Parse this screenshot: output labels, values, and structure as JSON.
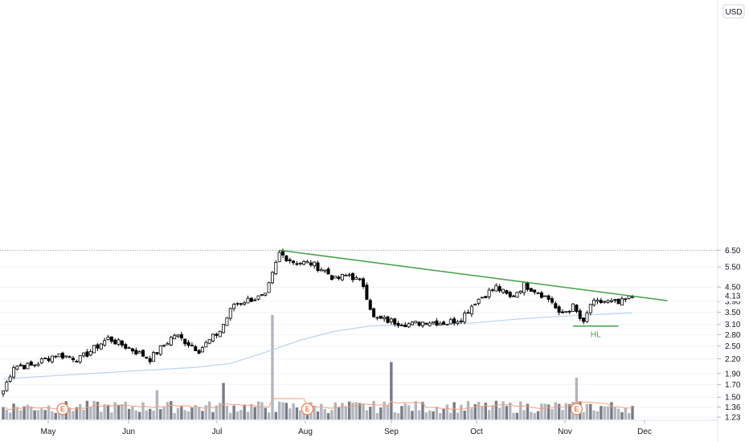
{
  "chart_data": {
    "type": "candlestick",
    "currency": "USD",
    "y_scale": "log",
    "ylim": [
      1.2,
      7.0
    ],
    "y_ticks": [
      "6.50",
      "5.50",
      "4.50",
      "3.90",
      "3.50",
      "3.10",
      "2.80",
      "2.50",
      "2.20",
      "1.90",
      "1.70",
      "1.50",
      "1.36",
      "1.23"
    ],
    "last_price_label": "4.13",
    "x_labels": [
      "May",
      "Jun",
      "Jul",
      "Aug",
      "Sep",
      "Oct",
      "Nov",
      "Dec"
    ],
    "price_keypoints": [
      [
        0,
        1.6
      ],
      [
        3,
        2.05
      ],
      [
        8,
        2.05
      ],
      [
        15,
        2.3
      ],
      [
        22,
        2.2
      ],
      [
        30,
        2.7
      ],
      [
        36,
        2.45
      ],
      [
        42,
        2.2
      ],
      [
        49,
        2.8
      ],
      [
        56,
        2.4
      ],
      [
        62,
        2.9
      ],
      [
        66,
        3.8
      ],
      [
        71,
        4.0
      ],
      [
        75,
        4.1
      ],
      [
        79,
        6.3
      ],
      [
        83,
        5.8
      ],
      [
        88,
        5.7
      ],
      [
        92,
        5.3
      ],
      [
        95,
        4.85
      ],
      [
        99,
        5.1
      ],
      [
        103,
        4.6
      ],
      [
        106,
        3.3
      ],
      [
        111,
        3.2
      ],
      [
        117,
        3.1
      ],
      [
        121,
        3.2
      ],
      [
        127,
        3.15
      ],
      [
        131,
        3.3
      ],
      [
        135,
        3.9
      ],
      [
        141,
        4.5
      ],
      [
        145,
        4.05
      ],
      [
        149,
        4.6
      ],
      [
        153,
        4.3
      ],
      [
        157,
        3.9
      ],
      [
        159,
        3.4
      ],
      [
        163,
        3.7
      ],
      [
        166,
        3.1
      ],
      [
        168,
        3.8
      ],
      [
        172,
        3.9
      ],
      [
        176,
        3.8
      ],
      [
        180,
        4.1
      ]
    ],
    "ma_keypoints": [
      [
        0,
        1.8
      ],
      [
        20,
        1.88
      ],
      [
        40,
        1.96
      ],
      [
        55,
        2.02
      ],
      [
        65,
        2.1
      ],
      [
        75,
        2.35
      ],
      [
        85,
        2.65
      ],
      [
        95,
        2.9
      ],
      [
        105,
        3.05
      ],
      [
        115,
        3.08
      ],
      [
        125,
        3.1
      ],
      [
        135,
        3.15
      ],
      [
        145,
        3.25
      ],
      [
        155,
        3.33
      ],
      [
        165,
        3.4
      ],
      [
        175,
        3.45
      ],
      [
        180,
        3.48
      ]
    ],
    "trendline": {
      "from": [
        79,
        6.5
      ],
      "to": [
        190,
        3.93
      ]
    },
    "support_line": {
      "from": [
        163,
        3.05
      ],
      "to": [
        176,
        3.05
      ],
      "label": "HL"
    },
    "earnings_markers": [
      {
        "bar": 17,
        "label": "E"
      },
      {
        "bar": 87,
        "label": "E"
      },
      {
        "bar": 164,
        "label": "E"
      }
    ],
    "volume_spikes": [
      [
        77,
        1.0
      ],
      [
        111,
        0.55
      ],
      [
        164,
        0.4
      ],
      [
        63,
        0.35
      ],
      [
        44,
        0.28
      ]
    ],
    "colors": {
      "up_body": "#ffffff",
      "down_body": "#000000",
      "wick": "#000000",
      "trendline": "#43a047",
      "support": "#43a047",
      "ma": "#b8d4f0",
      "volume": "#b2b5be",
      "volume_alt": "#787b86",
      "volume_ma": "#f7a07a",
      "earnings": "#f47b50"
    }
  }
}
